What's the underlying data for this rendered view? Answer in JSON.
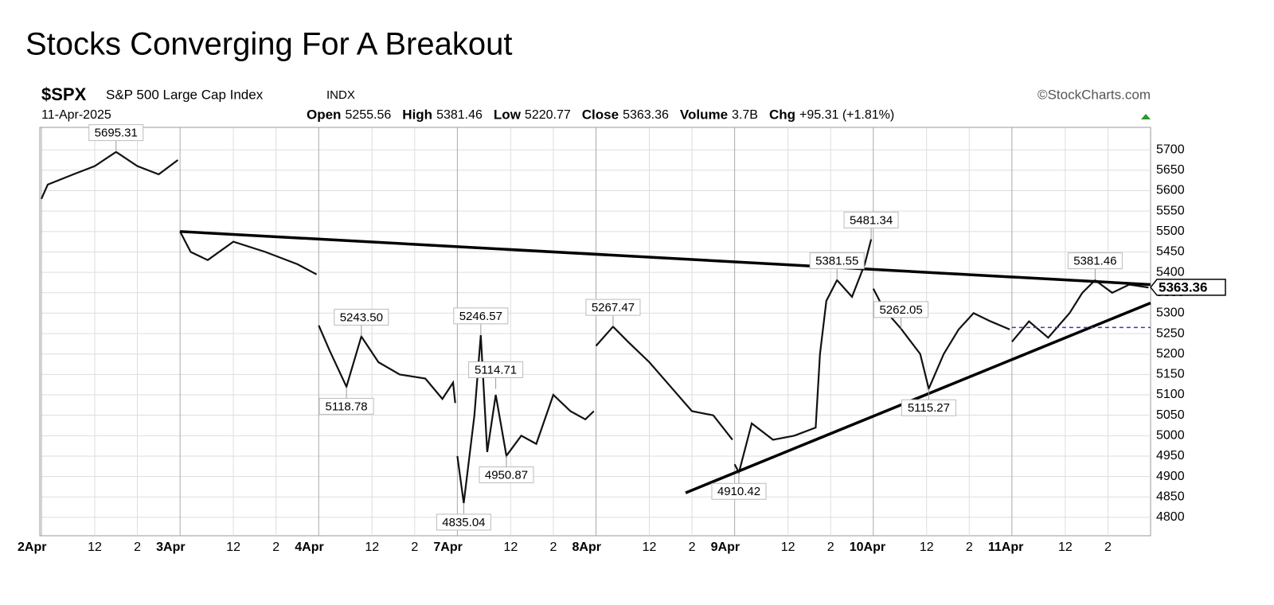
{
  "title": "Stocks Converging For A Breakout",
  "header": {
    "symbol": "$SPX",
    "name": "S&P 500 Large Cap Index",
    "exchange": "INDX",
    "source": "©StockCharts.com",
    "date": "11-Apr-2025",
    "stats": [
      {
        "label": "Open",
        "value": "5255.56"
      },
      {
        "label": "High",
        "value": "5381.46"
      },
      {
        "label": "Low",
        "value": "5220.77"
      },
      {
        "label": "Close",
        "value": "5363.36"
      },
      {
        "label": "Volume",
        "value": "3.7B"
      },
      {
        "label": "Chg",
        "value": "+95.31 (+1.81%)"
      }
    ]
  },
  "chart_data": {
    "type": "line",
    "color": "#111111",
    "grid": true,
    "x": [
      0,
      0.3,
      1.5,
      2.5,
      3.5,
      4.5,
      5.5,
      6.4,
      6.45,
      6.5,
      7.0,
      7.8,
      9.0,
      10.5,
      12.0,
      12.9,
      12.95,
      13.0,
      13.5,
      14.3,
      15.0,
      15.8,
      16.8,
      18.0,
      18.8,
      19.3,
      19.4,
      19.45,
      19.5,
      19.8,
      20.3,
      20.6,
      20.9,
      21.3,
      21.8,
      22.5,
      23.2,
      24.0,
      24.8,
      25.5,
      25.9,
      25.95,
      26.0,
      26.8,
      27.5,
      28.5,
      29.5,
      30.5,
      31.5,
      32.4,
      32.45,
      32.5,
      32.7,
      33.3,
      34.3,
      35.3,
      36.3,
      36.5,
      36.8,
      37.3,
      38.0,
      38.6,
      38.9,
      38.95,
      39.0,
      39.5,
      40.3,
      41.2,
      41.6,
      42.3,
      43.0,
      43.7,
      44.5,
      45.4,
      45.45,
      45.5,
      46.3,
      47.2,
      48.2,
      48.8,
      49.4,
      50.2,
      51.0,
      51.9
    ],
    "values": [
      5580,
      5615,
      5640,
      5660,
      5695,
      5660,
      5640,
      5675,
      null,
      5500,
      5450,
      5430,
      5475,
      5450,
      5420,
      5395,
      null,
      5270,
      5210,
      5120,
      5243,
      5180,
      5150,
      5140,
      5090,
      5130,
      5080,
      null,
      4950,
      4835,
      5050,
      5246,
      4960,
      5100,
      4951,
      5000,
      4980,
      5100,
      5060,
      5040,
      5060,
      null,
      5220,
      5267,
      5230,
      5180,
      5120,
      5060,
      5050,
      4990,
      null,
      4930,
      4910,
      5030,
      4990,
      5000,
      5020,
      5200,
      5330,
      5381,
      5340,
      5420,
      5481,
      null,
      5360,
      5310,
      5262,
      5200,
      5115,
      5200,
      5260,
      5300,
      5280,
      5260,
      null,
      5230,
      5280,
      5240,
      5300,
      5350,
      5381,
      5350,
      5370,
      5363
    ],
    "xlim": [
      0,
      52
    ],
    "ylim": [
      4755,
      5755
    ],
    "yticks": [
      4800,
      4850,
      4900,
      4950,
      5000,
      5050,
      5100,
      5150,
      5200,
      5250,
      5300,
      5350,
      5400,
      5450,
      5500,
      5550,
      5600,
      5650,
      5700
    ],
    "xticks": [
      {
        "value": 0,
        "label": "2Apr"
      },
      {
        "value": 2.5,
        "label": "12"
      },
      {
        "value": 4.5,
        "label": "2"
      },
      {
        "value": 6.5,
        "label": "3Apr"
      },
      {
        "value": 9,
        "label": "12"
      },
      {
        "value": 11,
        "label": "2"
      },
      {
        "value": 13,
        "label": "4Apr"
      },
      {
        "value": 15.5,
        "label": "12"
      },
      {
        "value": 17.5,
        "label": "2"
      },
      {
        "value": 19.5,
        "label": "7Apr"
      },
      {
        "value": 22,
        "label": "12"
      },
      {
        "value": 24,
        "label": "2"
      },
      {
        "value": 26,
        "label": "8Apr"
      },
      {
        "value": 28.5,
        "label": "12"
      },
      {
        "value": 30.5,
        "label": "2"
      },
      {
        "value": 32.5,
        "label": "9Apr"
      },
      {
        "value": 35,
        "label": "12"
      },
      {
        "value": 37,
        "label": "2"
      },
      {
        "value": 39,
        "label": "10Apr"
      },
      {
        "value": 41.5,
        "label": "12"
      },
      {
        "value": 43.5,
        "label": "2"
      },
      {
        "value": 45.5,
        "label": "11Apr"
      },
      {
        "value": 48,
        "label": "12"
      },
      {
        "value": 50,
        "label": "2"
      }
    ],
    "annotations": [
      {
        "x": 3.5,
        "value": 5695.31,
        "label": "5695.31",
        "position": "above"
      },
      {
        "x": 15.0,
        "value": 5243.5,
        "label": "5243.50",
        "position": "above"
      },
      {
        "x": 14.3,
        "value": 5118.78,
        "label": "5118.78",
        "position": "below"
      },
      {
        "x": 20.6,
        "value": 5246.57,
        "label": "5246.57",
        "position": "above"
      },
      {
        "x": 21.3,
        "value": 5114.71,
        "label": "5114.71",
        "position": "above"
      },
      {
        "x": 21.8,
        "value": 4950.87,
        "label": "4950.87",
        "position": "below"
      },
      {
        "x": 19.8,
        "value": 4835.04,
        "label": "4835.04",
        "position": "below"
      },
      {
        "x": 26.8,
        "value": 5267.47,
        "label": "5267.47",
        "position": "above"
      },
      {
        "x": 32.7,
        "value": 4910.42,
        "label": "4910.42",
        "position": "below"
      },
      {
        "x": 37.3,
        "value": 5381.55,
        "label": "5381.55",
        "position": "above"
      },
      {
        "x": 38.9,
        "value": 5481.34,
        "label": "5481.34",
        "position": "above"
      },
      {
        "x": 40.3,
        "value": 5262.05,
        "label": "5262.05",
        "position": "above"
      },
      {
        "x": 41.6,
        "value": 5115.27,
        "label": "5115.27",
        "position": "below"
      },
      {
        "x": 49.4,
        "value": 5381.46,
        "label": "5381.46",
        "position": "above"
      }
    ],
    "last_price": {
      "value": 5363.36,
      "label": "5363.36"
    },
    "trendlines": [
      {
        "x": [
          6.5,
          52
        ],
        "values": [
          5500,
          5370
        ],
        "color": "#000000"
      },
      {
        "x": [
          30.2,
          52
        ],
        "values": [
          4860,
          5325
        ],
        "color": "#000000"
      }
    ],
    "reference_line": {
      "x": [
        45.5,
        52
      ],
      "value": 5265,
      "color": "#3a3ab8"
    }
  }
}
